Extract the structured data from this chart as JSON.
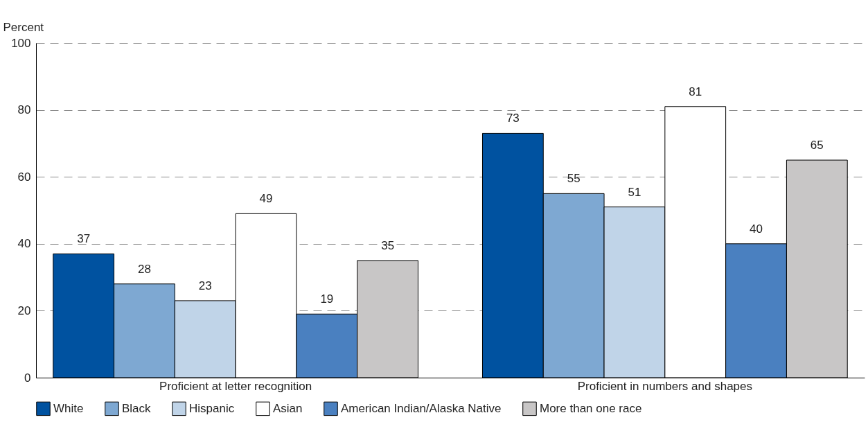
{
  "chart_data": {
    "type": "bar",
    "ylabel": "Percent",
    "categories": [
      "Proficient at letter recognition",
      "Proficient in numbers and shapes"
    ],
    "series": [
      {
        "name": "White",
        "color": "#0052a0",
        "values": [
          37,
          73
        ]
      },
      {
        "name": "Black",
        "color": "#7ea8d2",
        "values": [
          28,
          55
        ]
      },
      {
        "name": "Hispanic",
        "color": "#c0d4e8",
        "values": [
          23,
          51
        ]
      },
      {
        "name": "Asian",
        "color": "#ffffff",
        "values": [
          49,
          81
        ]
      },
      {
        "name": "American Indian/Alaska Native",
        "color": "#4a80c0",
        "values": [
          19,
          40
        ]
      },
      {
        "name": "More than one race",
        "color": "#c8c6c6",
        "values": [
          35,
          65
        ]
      }
    ],
    "ylim": [
      0,
      100
    ],
    "yticks": [
      0,
      20,
      40,
      60,
      80,
      100
    ],
    "grid": "y",
    "legend": "bottom",
    "data_labels": true
  }
}
